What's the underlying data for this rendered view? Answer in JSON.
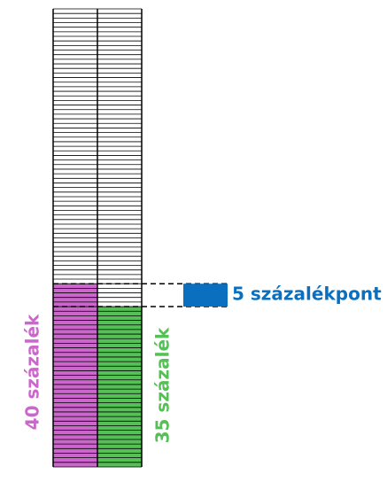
{
  "chart_data": {
    "type": "unit-column",
    "series": [
      {
        "color": "#cc66cc",
        "values": [
          40
        ],
        "value_labels": [
          "40 százalék"
        ]
      },
      {
        "color": "#55c055",
        "values": [
          35
        ],
        "value_labels": [
          "35 százalék"
        ]
      }
    ],
    "ylim": [
      0,
      100
    ],
    "annotation": {
      "value": 5,
      "label": "5 százalékpont",
      "color": "#0b6fbf"
    }
  }
}
